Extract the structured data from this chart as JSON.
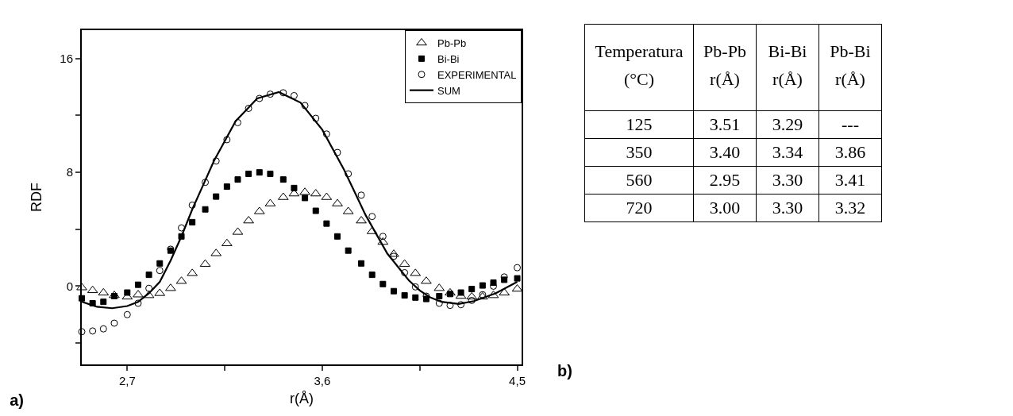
{
  "chart_data": [
    {
      "type": "scatter",
      "title": "a)",
      "xlabel": "r(Å)",
      "ylabel": "RDF",
      "xlim": [
        2.49,
        4.52
      ],
      "ylim": [
        -5.5,
        18
      ],
      "xticks": [
        {
          "value": 2.7,
          "label": "2,7"
        },
        {
          "value": 3.15,
          "label": null
        },
        {
          "value": 3.6,
          "label": "3,6"
        },
        {
          "value": 4.05,
          "label": null
        },
        {
          "value": 4.5,
          "label": "4,5"
        }
      ],
      "yticks": [
        {
          "value": -4,
          "label": null
        },
        0,
        {
          "value": 4,
          "label": null
        },
        8,
        {
          "value": 12,
          "label": null
        },
        16
      ],
      "grid": false,
      "legend": "top right",
      "x": [
        2.49,
        2.54,
        2.59,
        2.64,
        2.7,
        2.75,
        2.8,
        2.85,
        2.9,
        2.95,
        3.0,
        3.06,
        3.11,
        3.16,
        3.21,
        3.26,
        3.31,
        3.36,
        3.42,
        3.47,
        3.52,
        3.57,
        3.62,
        3.67,
        3.72,
        3.78,
        3.83,
        3.88,
        3.93,
        3.98,
        4.03,
        4.08,
        4.14,
        4.19,
        4.24,
        4.29,
        4.34,
        4.39,
        4.44,
        4.5
      ],
      "series": [
        {
          "name": "Pb-Pb",
          "type": "scatter",
          "marker": "triangle",
          "color": "#000000",
          "values": [
            -0.1,
            -0.3,
            -0.47,
            -0.65,
            -0.75,
            -0.6,
            -0.65,
            -0.5,
            -0.15,
            0.35,
            0.9,
            1.55,
            2.3,
            3.0,
            3.8,
            4.6,
            5.25,
            5.8,
            6.25,
            6.5,
            6.6,
            6.5,
            6.25,
            5.8,
            5.25,
            4.6,
            3.85,
            3.1,
            2.25,
            1.55,
            0.9,
            0.35,
            -0.15,
            -0.47,
            -0.7,
            -0.75,
            -0.75,
            -0.65,
            -0.47,
            -0.2
          ]
        },
        {
          "name": "Bi-Bi",
          "type": "scatter",
          "marker": "square",
          "color": "#000000",
          "values": [
            -0.85,
            -1.2,
            -1.1,
            -0.7,
            -0.45,
            0.1,
            0.8,
            1.6,
            2.5,
            3.5,
            4.5,
            5.4,
            6.3,
            7.0,
            7.5,
            7.9,
            8.0,
            7.9,
            7.5,
            6.9,
            6.2,
            5.3,
            4.4,
            3.5,
            2.5,
            1.6,
            0.8,
            0.15,
            -0.35,
            -0.65,
            -0.8,
            -0.9,
            -0.7,
            -0.55,
            -0.45,
            -0.2,
            0.05,
            0.25,
            0.45,
            0.55
          ]
        },
        {
          "name": "EXPERIMENTAL",
          "type": "scatter",
          "marker": "circle",
          "color": "#000000",
          "values": [
            -3.2,
            -3.15,
            -3.0,
            -2.6,
            -2.0,
            -1.2,
            -0.15,
            1.1,
            2.6,
            4.1,
            5.7,
            7.3,
            8.8,
            10.3,
            11.5,
            12.5,
            13.2,
            13.5,
            13.6,
            13.4,
            12.7,
            11.8,
            10.7,
            9.4,
            7.9,
            6.4,
            4.9,
            3.5,
            2.1,
            0.95,
            -0.05,
            -0.7,
            -1.2,
            -1.35,
            -1.3,
            -1.0,
            -0.6,
            0,
            0.65,
            1.3
          ]
        },
        {
          "name": "SUM",
          "type": "line",
          "marker": "none",
          "line_style": "solid",
          "color": "#000000",
          "x": [
            2.49,
            2.56,
            2.63,
            2.7,
            2.75,
            2.8,
            2.85,
            2.9,
            2.95,
            3.0,
            3.1,
            3.2,
            3.3,
            3.4,
            3.5,
            3.6,
            3.7,
            3.8,
            3.9,
            4.0,
            4.05,
            4.1,
            4.15,
            4.23,
            4.3,
            4.4,
            4.5
          ],
          "values": [
            -1.1,
            -1.45,
            -1.55,
            -1.4,
            -1.1,
            -0.5,
            0.3,
            1.8,
            3.5,
            5.4,
            8.8,
            11.6,
            13.2,
            13.65,
            12.9,
            11.0,
            8.2,
            5.0,
            2.3,
            0.4,
            -0.3,
            -0.8,
            -1.1,
            -1.25,
            -1.05,
            -0.5,
            0.3
          ]
        }
      ]
    },
    {
      "type": "other",
      "title": "b)",
      "categories": [
        "Temperatura (°C)",
        "Pb-Pb r(Å)",
        "Bi-Bi r(Å)",
        "Pb-Bi r(Å)"
      ],
      "annotations": [
        "125",
        "3.51",
        "3.29",
        "---",
        "350",
        "3.40",
        "3.34",
        "3.86",
        "560",
        "2.95",
        "3.30",
        "3.41",
        "720",
        "3.00",
        "3.30",
        "3.32"
      ]
    }
  ]
}
